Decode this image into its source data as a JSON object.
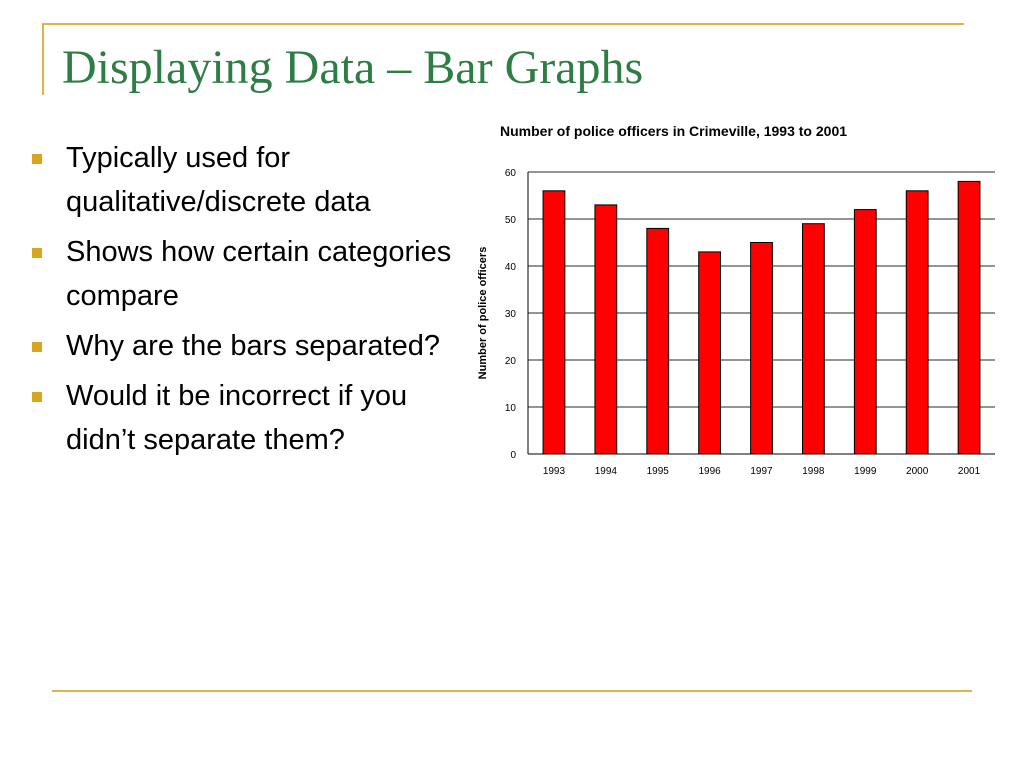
{
  "slide": {
    "title": "Displaying Data – Bar Graphs",
    "bullets": [
      "Typically used for qualitative/discrete data",
      "Shows how certain categories compare",
      "Why are the bars separated?",
      "Would it be incorrect if you didn’t separate them?"
    ],
    "accent_color": "#d9b54a",
    "title_color": "#2e7d45"
  },
  "chart_data": {
    "type": "bar",
    "title": "Number of police officers in Crimeville, 1993 to 2001",
    "xlabel": "",
    "ylabel": "Number of police officers",
    "categories": [
      "1993",
      "1994",
      "1995",
      "1996",
      "1997",
      "1998",
      "1999",
      "2000",
      "2001"
    ],
    "values": [
      56,
      53,
      48,
      43,
      45,
      49,
      52,
      56,
      58
    ],
    "ylim": [
      0,
      60
    ],
    "yticks": [
      "0",
      "10",
      "20",
      "30",
      "40",
      "50",
      "60"
    ],
    "grid": true,
    "bar_color": "#ff0000"
  }
}
